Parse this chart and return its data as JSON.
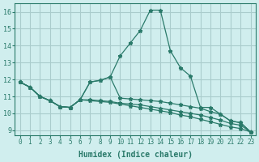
{
  "title": "",
  "xlabel": "Humidex (Indice chaleur)",
  "ylabel": "",
  "bg_color": "#d0eeee",
  "line_color": "#2a7a6a",
  "grid_color": "#aacccc",
  "xlim": [
    -0.5,
    23.5
  ],
  "ylim": [
    8.7,
    16.5
  ],
  "yticks": [
    9,
    10,
    11,
    12,
    13,
    14,
    15,
    16
  ],
  "xticks": [
    0,
    1,
    2,
    3,
    4,
    5,
    6,
    7,
    8,
    9,
    10,
    11,
    12,
    13,
    14,
    15,
    16,
    17,
    18,
    19,
    20,
    21,
    22,
    23
  ],
  "lines": [
    [
      0,
      11.85,
      1,
      11.55,
      2,
      11.0,
      3,
      10.75,
      4,
      10.4,
      5,
      10.35,
      6,
      10.8,
      7,
      11.85,
      8,
      11.95,
      9,
      12.15,
      10,
      13.4,
      11,
      14.15,
      12,
      14.9,
      13,
      16.1,
      14,
      16.1,
      15,
      13.7,
      16,
      12.7,
      17,
      12.2,
      18,
      10.35,
      19,
      10.35,
      20,
      9.95,
      21,
      9.55,
      22,
      9.45,
      23,
      8.9
    ],
    [
      0,
      11.85,
      1,
      11.55,
      2,
      11.0,
      3,
      10.75,
      4,
      10.4,
      5,
      10.35,
      6,
      10.8,
      7,
      11.85,
      8,
      11.95,
      9,
      12.15,
      10,
      10.9,
      11,
      10.85,
      12,
      10.8,
      13,
      10.75,
      14,
      10.7,
      15,
      10.6,
      16,
      10.5,
      17,
      10.4,
      18,
      10.3,
      19,
      10.1,
      20,
      9.95,
      21,
      9.55,
      22,
      9.45,
      23,
      8.9
    ],
    [
      0,
      11.85,
      1,
      11.55,
      2,
      11.0,
      3,
      10.75,
      4,
      10.4,
      5,
      10.35,
      6,
      10.8,
      7,
      10.8,
      8,
      10.75,
      9,
      10.7,
      10,
      10.6,
      11,
      10.55,
      12,
      10.5,
      13,
      10.4,
      14,
      10.3,
      15,
      10.2,
      16,
      10.1,
      17,
      10.0,
      18,
      9.9,
      19,
      9.75,
      20,
      9.6,
      21,
      9.4,
      22,
      9.3,
      23,
      8.9
    ],
    [
      0,
      11.85,
      1,
      11.55,
      2,
      11.0,
      3,
      10.75,
      4,
      10.4,
      5,
      10.35,
      6,
      10.8,
      7,
      10.75,
      8,
      10.7,
      9,
      10.65,
      10,
      10.55,
      11,
      10.45,
      12,
      10.35,
      13,
      10.25,
      14,
      10.15,
      15,
      10.05,
      16,
      9.9,
      17,
      9.8,
      18,
      9.65,
      19,
      9.5,
      20,
      9.35,
      21,
      9.2,
      22,
      9.1,
      23,
      8.9
    ]
  ]
}
